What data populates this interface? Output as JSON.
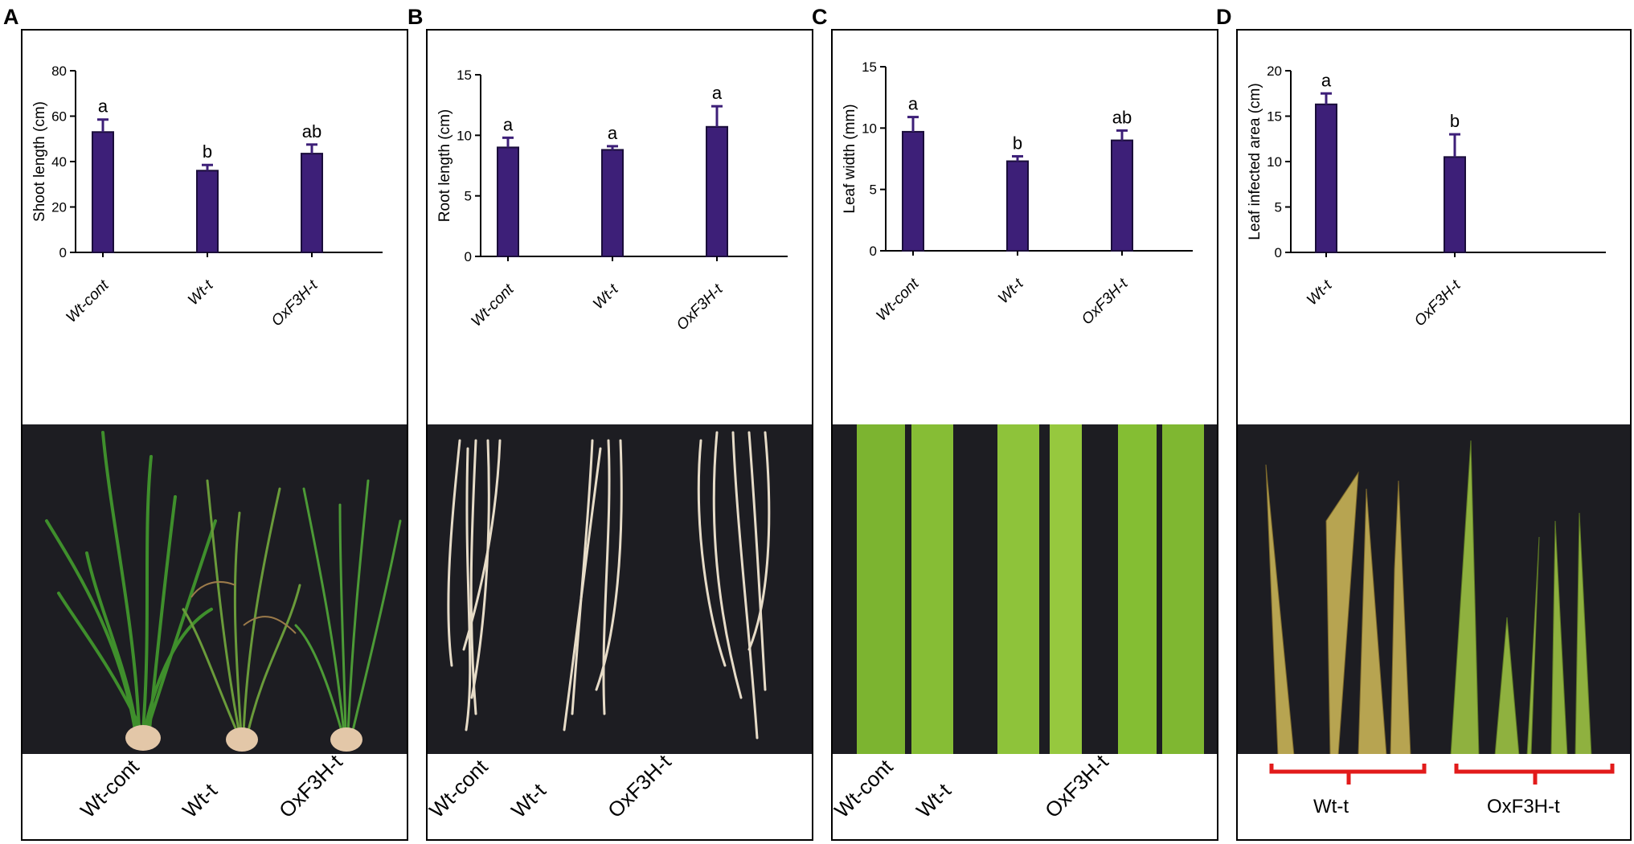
{
  "colors": {
    "bar": "#3d1f78",
    "axis": "#000000",
    "photo_bg": "#1d1d22",
    "bracket": "#e21b1b"
  },
  "panels": [
    {
      "letter": "A",
      "photo_caption": [
        "Wt-cont",
        "Wt-t",
        "OxF3H-t"
      ]
    },
    {
      "letter": "B",
      "photo_caption": [
        "Wt-cont",
        "Wt-t",
        "OxF3H-t"
      ]
    },
    {
      "letter": "C",
      "photo_caption": [
        "Wt-cont",
        "Wt-t",
        "OxF3H-t"
      ]
    },
    {
      "letter": "D",
      "photo_caption": [
        "Wt-t",
        "OxF3H-t"
      ]
    }
  ],
  "chart_data": [
    {
      "type": "bar",
      "title": "",
      "xlabel": "",
      "ylabel": "Shoot length (cm)",
      "categories": [
        "Wt-cont",
        "Wt-t",
        "OxF3H-t"
      ],
      "values": [
        53,
        36,
        43.5
      ],
      "errors": [
        5.5,
        2.5,
        4
      ],
      "significance": [
        "a",
        "b",
        "ab"
      ],
      "ylim": [
        0,
        80
      ],
      "yticks": [
        "0",
        "20",
        "40",
        "60",
        "80"
      ]
    },
    {
      "type": "bar",
      "title": "",
      "xlabel": "",
      "ylabel": "Root length (cm)",
      "categories": [
        "Wt-cont",
        "Wt-t",
        "OxF3H-t"
      ],
      "values": [
        9.0,
        8.8,
        10.7
      ],
      "errors": [
        0.8,
        0.3,
        1.7
      ],
      "significance": [
        "a",
        "a",
        "a"
      ],
      "ylim": [
        0,
        15
      ],
      "yticks": [
        "0",
        "5",
        "10",
        "15"
      ]
    },
    {
      "type": "bar",
      "title": "",
      "xlabel": "",
      "ylabel": "Leaf width (mm)",
      "categories": [
        "Wt-cont",
        "Wt-t",
        "OxF3H-t"
      ],
      "values": [
        9.7,
        7.3,
        9.0
      ],
      "errors": [
        1.2,
        0.4,
        0.8
      ],
      "significance": [
        "a",
        "b",
        "ab"
      ],
      "ylim": [
        0,
        15
      ],
      "yticks": [
        "0",
        "5",
        "10",
        "15"
      ]
    },
    {
      "type": "bar",
      "title": "",
      "xlabel": "",
      "ylabel": "Leaf infected area (cm)",
      "categories": [
        "Wt-t",
        "OxF3H-t"
      ],
      "values": [
        16.3,
        10.5
      ],
      "errors": [
        1.2,
        2.5
      ],
      "significance": [
        "a",
        "b"
      ],
      "ylim": [
        0,
        20
      ],
      "yticks": [
        "0",
        "5",
        "10",
        "15",
        "20"
      ]
    }
  ]
}
